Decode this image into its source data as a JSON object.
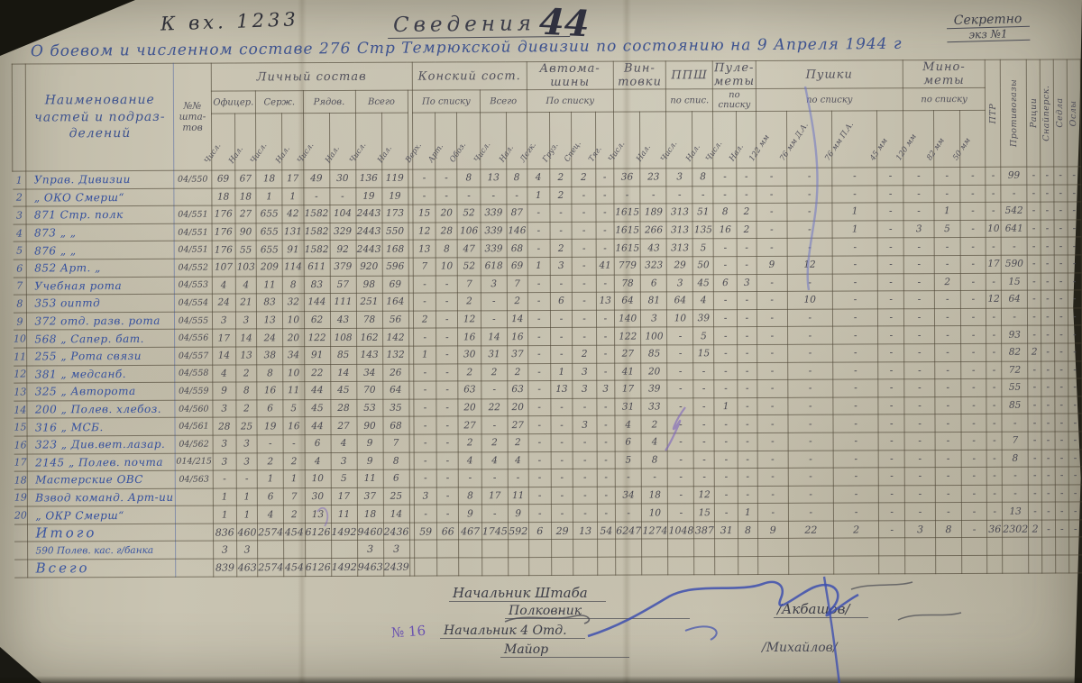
{
  "classification": {
    "secret": "Секретно",
    "copy": "экз №1"
  },
  "header": {
    "incoming": "К  вх. 1233",
    "title": "Сведения",
    "title_number": "44",
    "subtitle": "О боевом и численном составе 276 Стр Темрюкской дивизии по состоянию на 9 Апреля 1944 г"
  },
  "table": {
    "columns": {
      "name": "Наименование частей и подраз- делений",
      "shtat": "№№ шта- тов",
      "groups": [
        {
          "label": "Личный состав",
          "extra": 1,
          "subs": [
            {
              "label": "Офицер.",
              "leaves": [
                "Числ.",
                "Нал."
              ]
            },
            {
              "label": "Серж.",
              "leaves": [
                "Числ.",
                "Нал."
              ]
            },
            {
              "label": "Рядов.",
              "leaves": [
                "Числ.",
                "Нал."
              ]
            },
            {
              "label": "Всего",
              "leaves": [
                "Числ.",
                "Нал."
              ]
            }
          ]
        },
        {
          "label": "Конский сост.",
          "subs": [
            {
              "label": "По списку",
              "leaves": [
                "Верх.",
                "Арт.",
                "Обоз."
              ]
            },
            {
              "label": "Всего",
              "leaves": [
                "Числ.",
                "Нал."
              ]
            }
          ]
        },
        {
          "label": "Автома- шины",
          "subs": [
            {
              "label": "По списку",
              "leaves": [
                "Легк.",
                "Груз.",
                "Спец.",
                "Тяг."
              ]
            }
          ]
        },
        {
          "label": "Вин- товки",
          "subs": [
            {
              "label": "",
              "leaves": [
                "Числ.",
                "Нал."
              ]
            }
          ]
        },
        {
          "label": "ППШ",
          "subs": [
            {
              "label": "по спис.",
              "leaves": [
                "Числ.",
                "Нал."
              ]
            }
          ]
        },
        {
          "label": "Пуле- меты",
          "subs": [
            {
              "label": "по списку",
              "leaves": [
                "Числ.",
                "Нал."
              ]
            }
          ]
        },
        {
          "label": "Пушки",
          "subs": [
            {
              "label": "по списку",
              "leaves": [
                "122 мм",
                "76 мм Д.А.",
                "76 мм П.А.",
                "45 мм"
              ]
            }
          ]
        },
        {
          "label": "Мино- меты",
          "subs": [
            {
              "label": "по списку",
              "leaves": [
                "120 мм",
                "82 мм",
                "50 мм"
              ]
            }
          ]
        }
      ],
      "vertical": [
        "ПТР",
        "Противогазы",
        "Рации",
        "Снайперск.",
        "Седла",
        "Ослы"
      ]
    },
    "rows": [
      {
        "num": "1",
        "name": "Управ. Дивизии",
        "shtat": "04/550",
        "cells": [
          "69",
          "67",
          "18",
          "17",
          "49",
          "30",
          "136",
          "119",
          "",
          "-",
          "-",
          "8",
          "13",
          "8",
          "4",
          "2",
          "2",
          "-",
          "36",
          "23",
          "3",
          "8",
          "-",
          "-",
          "-",
          "-",
          "-",
          "-",
          "-",
          "-",
          "-",
          "-",
          "99",
          "-",
          "-",
          "-",
          "-"
        ]
      },
      {
        "num": "2",
        "name": "„ ОКО Смерш“",
        "shtat": "",
        "cells": [
          "18",
          "18",
          "1",
          "1",
          "-",
          "-",
          "19",
          "19",
          "",
          "-",
          "-",
          "-",
          "-",
          "-",
          "1",
          "2",
          "-",
          "-",
          "-",
          "-",
          "-",
          "-",
          "-",
          "-",
          "-",
          "-",
          "-",
          "-",
          "-",
          "-",
          "-",
          "-",
          "-",
          "-",
          "-",
          "-",
          "-"
        ]
      },
      {
        "num": "3",
        "name": "871 Стр. полк",
        "shtat": "04/551",
        "cells": [
          "176",
          "27",
          "655",
          "42",
          "1582",
          "104",
          "2443",
          "173",
          "",
          "15",
          "20",
          "52",
          "339",
          "87",
          "-",
          "-",
          "-",
          "-",
          "1615",
          "189",
          "313",
          "51",
          "8",
          "2",
          "-",
          "-",
          "1",
          "-",
          "-",
          "1",
          "-",
          "-",
          "542",
          "-",
          "-",
          "-",
          "-"
        ]
      },
      {
        "num": "4",
        "name": "873   „    „",
        "shtat": "04/551",
        "cells": [
          "176",
          "90",
          "655",
          "131",
          "1582",
          "329",
          "2443",
          "550",
          "",
          "12",
          "28",
          "106",
          "339",
          "146",
          "-",
          "-",
          "-",
          "-",
          "1615",
          "266",
          "313",
          "135",
          "16",
          "2",
          "-",
          "-",
          "1",
          "-",
          "3",
          "5",
          "-",
          "10",
          "641",
          "-",
          "-",
          "-",
          "-"
        ]
      },
      {
        "num": "5",
        "name": "876   „    „",
        "shtat": "04/551",
        "cells": [
          "176",
          "55",
          "655",
          "91",
          "1582",
          "92",
          "2443",
          "168",
          "",
          "13",
          "8",
          "47",
          "339",
          "68",
          "-",
          "2",
          "-",
          "-",
          "1615",
          "43",
          "313",
          "5",
          "-",
          "-",
          "-",
          "-",
          "-",
          "-",
          "-",
          "-",
          "-",
          "-",
          "-",
          "-",
          "-",
          "-",
          "-"
        ]
      },
      {
        "num": "6",
        "name": "852 Арт.  „",
        "shtat": "04/552",
        "cells": [
          "107",
          "103",
          "209",
          "114",
          "611",
          "379",
          "920",
          "596",
          "",
          "7",
          "10",
          "52",
          "618",
          "69",
          "1",
          "3",
          "-",
          "41",
          "779",
          "323",
          "29",
          "50",
          "-",
          "-",
          "9",
          "12",
          "-",
          "-",
          "-",
          "-",
          "-",
          "17",
          "590",
          "-",
          "-",
          "-",
          "-"
        ]
      },
      {
        "num": "7",
        "name": "Учебная рота",
        "shtat": "04/553",
        "cells": [
          "4",
          "4",
          "11",
          "8",
          "83",
          "57",
          "98",
          "69",
          "",
          "-",
          "-",
          "7",
          "3",
          "7",
          "-",
          "-",
          "-",
          "-",
          "78",
          "6",
          "3",
          "45",
          "6",
          "3",
          "-",
          "-",
          "-",
          "-",
          "-",
          "2",
          "-",
          "-",
          "15",
          "-",
          "-",
          "-",
          "-"
        ]
      },
      {
        "num": "8",
        "name": "353 оиптд",
        "shtat": "04/554",
        "cells": [
          "24",
          "21",
          "83",
          "32",
          "144",
          "111",
          "251",
          "164",
          "",
          "-",
          "-",
          "2",
          "-",
          "2",
          "-",
          "6",
          "-",
          "13",
          "64",
          "81",
          "64",
          "4",
          "-",
          "-",
          "-",
          "10",
          "-",
          "-",
          "-",
          "-",
          "-",
          "12",
          "64",
          "-",
          "-",
          "-",
          "-"
        ]
      },
      {
        "num": "9",
        "name": "372 отд. разв. рота",
        "shtat": "04/555",
        "cells": [
          "3",
          "3",
          "13",
          "10",
          "62",
          "43",
          "78",
          "56",
          "",
          "2",
          "-",
          "12",
          "-",
          "14",
          "-",
          "-",
          "-",
          "-",
          "140",
          "3",
          "10",
          "39",
          "-",
          "-",
          "-",
          "-",
          "-",
          "-",
          "-",
          "-",
          "-",
          "-",
          "-",
          "-",
          "-",
          "-",
          "-"
        ]
      },
      {
        "num": "10",
        "name": "568  „ Сапер. бат.",
        "shtat": "04/556",
        "cells": [
          "17",
          "14",
          "24",
          "20",
          "122",
          "108",
          "162",
          "142",
          "",
          "-",
          "-",
          "16",
          "14",
          "16",
          "-",
          "-",
          "-",
          "-",
          "122",
          "100",
          "-",
          "5",
          "-",
          "-",
          "-",
          "-",
          "-",
          "-",
          "-",
          "-",
          "-",
          "-",
          "93",
          "-",
          "-",
          "-",
          "-"
        ]
      },
      {
        "num": "11",
        "name": "255  „ Рота связи",
        "shtat": "04/557",
        "cells": [
          "14",
          "13",
          "38",
          "34",
          "91",
          "85",
          "143",
          "132",
          "",
          "1",
          "-",
          "30",
          "31",
          "37",
          "-",
          "-",
          "2",
          "-",
          "27",
          "85",
          "-",
          "15",
          "-",
          "-",
          "-",
          "-",
          "-",
          "-",
          "-",
          "-",
          "-",
          "-",
          "82",
          "2",
          "-",
          "-",
          "-"
        ]
      },
      {
        "num": "12",
        "name": "381  „  медсанб.",
        "shtat": "04/558",
        "cells": [
          "4",
          "2",
          "8",
          "10",
          "22",
          "14",
          "34",
          "26",
          "",
          "-",
          "-",
          "2",
          "2",
          "2",
          "-",
          "1",
          "3",
          "-",
          "41",
          "20",
          "-",
          "-",
          "-",
          "-",
          "-",
          "-",
          "-",
          "-",
          "-",
          "-",
          "-",
          "-",
          "72",
          "-",
          "-",
          "-",
          "-"
        ]
      },
      {
        "num": "13",
        "name": "325  „ Авторота",
        "shtat": "04/559",
        "cells": [
          "9",
          "8",
          "16",
          "11",
          "44",
          "45",
          "70",
          "64",
          "",
          "-",
          "-",
          "63",
          "-",
          "63",
          "-",
          "13",
          "3",
          "3",
          "17",
          "39",
          "-",
          "-",
          "-",
          "-",
          "-",
          "-",
          "-",
          "-",
          "-",
          "-",
          "-",
          "-",
          "55",
          "-",
          "-",
          "-",
          "-"
        ]
      },
      {
        "num": "14",
        "name": "200  „ Полев. хлебоз.",
        "shtat": "04/560",
        "cells": [
          "3",
          "2",
          "6",
          "5",
          "45",
          "28",
          "53",
          "35",
          "",
          "-",
          "-",
          "20",
          "22",
          "20",
          "-",
          "-",
          "-",
          "-",
          "31",
          "33",
          "-",
          "-",
          "1",
          "-",
          "-",
          "-",
          "-",
          "-",
          "-",
          "-",
          "-",
          "-",
          "85",
          "-",
          "-",
          "-",
          "-"
        ]
      },
      {
        "num": "15",
        "name": "316   „  МСБ.",
        "shtat": "04/561",
        "cells": [
          "28",
          "25",
          "19",
          "16",
          "44",
          "27",
          "90",
          "68",
          "",
          "-",
          "-",
          "27",
          "-",
          "27",
          "-",
          "-",
          "3",
          "-",
          "4",
          "2",
          "-",
          "-",
          "-",
          "-",
          "-",
          "-",
          "-",
          "-",
          "-",
          "-",
          "-",
          "-",
          "-",
          "-",
          "-",
          "-",
          "-"
        ]
      },
      {
        "num": "16",
        "name": "323  „ Див.вет.лазар.",
        "shtat": "04/562",
        "cells": [
          "3",
          "3",
          "-",
          "-",
          "6",
          "4",
          "9",
          "7",
          "",
          "-",
          "-",
          "2",
          "2",
          "2",
          "-",
          "-",
          "-",
          "-",
          "6",
          "4",
          "-",
          "-",
          "-",
          "-",
          "-",
          "-",
          "-",
          "-",
          "-",
          "-",
          "-",
          "-",
          "7",
          "-",
          "-",
          "-",
          "-"
        ]
      },
      {
        "num": "17",
        "name": "2145 „ Полев. почта",
        "shtat": "014/215",
        "cells": [
          "3",
          "3",
          "2",
          "2",
          "4",
          "3",
          "9",
          "8",
          "",
          "-",
          "-",
          "4",
          "4",
          "4",
          "-",
          "-",
          "-",
          "-",
          "5",
          "8",
          "-",
          "-",
          "-",
          "-",
          "-",
          "-",
          "-",
          "-",
          "-",
          "-",
          "-",
          "-",
          "8",
          "-",
          "-",
          "-",
          "-"
        ]
      },
      {
        "num": "18",
        "name": "Мастерские ОВС",
        "shtat": "04/563",
        "cells": [
          "-",
          "-",
          "1",
          "1",
          "10",
          "5",
          "11",
          "6",
          "",
          "-",
          "-",
          "-",
          "-",
          "-",
          "-",
          "-",
          "-",
          "-",
          "-",
          "-",
          "-",
          "-",
          "-",
          "-",
          "-",
          "-",
          "-",
          "-",
          "-",
          "-",
          "-",
          "-",
          "-",
          "-",
          "-",
          "-",
          "-"
        ]
      },
      {
        "num": "19",
        "name": "Взвод команд. Арт-ии",
        "shtat": "",
        "cells": [
          "1",
          "1",
          "6",
          "7",
          "30",
          "17",
          "37",
          "25",
          "",
          "3",
          "-",
          "8",
          "17",
          "11",
          "-",
          "-",
          "-",
          "-",
          "34",
          "18",
          "-",
          "12",
          "-",
          "-",
          "-",
          "-",
          "-",
          "-",
          "-",
          "-",
          "-",
          "-",
          "-",
          "-",
          "-",
          "-",
          "-"
        ]
      },
      {
        "num": "20",
        "name": "„ ОКР Смерш“",
        "shtat": "",
        "cells": [
          "1",
          "1",
          "4",
          "2",
          "13",
          "11",
          "18",
          "14",
          "",
          "-",
          "-",
          "9",
          "-",
          "9",
          "-",
          "-",
          "-",
          "-",
          "-",
          "10",
          "-",
          "15",
          "-",
          "1",
          "-",
          "-",
          "-",
          "-",
          "-",
          "-",
          "-",
          "-",
          "13",
          "-",
          "-",
          "-",
          "-"
        ]
      }
    ],
    "summary": [
      {
        "num": "",
        "name": "Итого",
        "shtat": "",
        "cls": "sumrow",
        "cells": [
          "836",
          "460",
          "2574",
          "454",
          "6126",
          "1492",
          "9460",
          "2436",
          "",
          "59",
          "66",
          "467",
          "1745",
          "592",
          "6",
          "29",
          "13",
          "54",
          "6247",
          "1274",
          "1048",
          "387",
          "31",
          "8",
          "9",
          "22",
          "2",
          "-",
          "3",
          "8",
          "-",
          "36",
          "2302",
          "2",
          "-",
          "-",
          "-"
        ]
      },
      {
        "num": "",
        "name": "590 Полев. кас. г/банка",
        "shtat": "",
        "cls": "sumrow minor",
        "cells": [
          "3",
          "3",
          "",
          "",
          "",
          "",
          "3",
          "3",
          "",
          "",
          "",
          "",
          "",
          "",
          "",
          "",
          "",
          "",
          "",
          "",
          "",
          "",
          "",
          "",
          "",
          "",
          "",
          "",
          "",
          "",
          "",
          "",
          "",
          "",
          "",
          "",
          ""
        ]
      },
      {
        "num": "",
        "name": "Всего",
        "shtat": "",
        "cls": "sumrow",
        "cells": [
          "839",
          "463",
          "2574",
          "454",
          "6126",
          "1492",
          "9463",
          "2439",
          "",
          "",
          "",
          "",
          "",
          "",
          "",
          "",
          "",
          "",
          "",
          "",
          "",
          "",
          "",
          "",
          "",
          "",
          "",
          "",
          "",
          "",
          "",
          "",
          "",
          "",
          "",
          "",
          ""
        ]
      }
    ]
  },
  "signatures": {
    "line1_role": "Начальник Штаба",
    "line1_rank": "Полковник",
    "line1_name": "/Акбашов/",
    "line2_role": "Начальник 4 Отд.",
    "line2_rank": "Майор",
    "line2_name": "/Михайлов/",
    "margin_note": "№ 16"
  }
}
